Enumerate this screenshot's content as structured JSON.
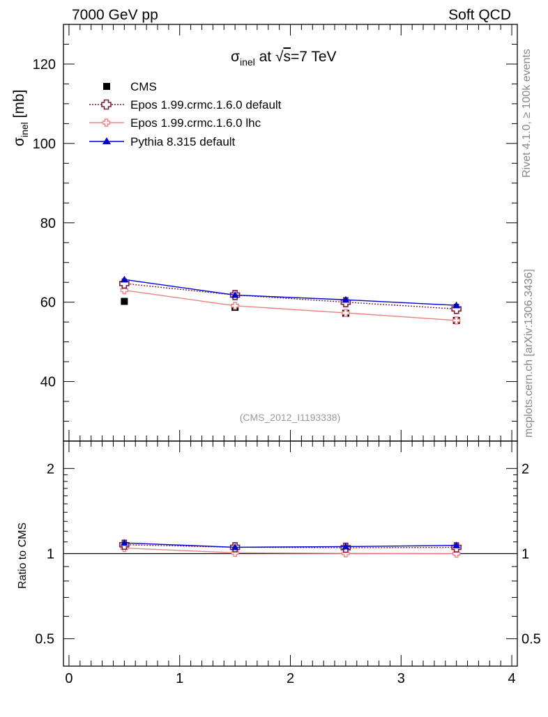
{
  "header": {
    "left": "7000 GeV pp",
    "right": "Soft QCD",
    "side_rivet": "Rivet 4.1.0, ≥ 100k events",
    "side_mcplots": "mcplots.cern.ch [arXiv:1306.3436]"
  },
  "colors": {
    "cms": "#000000",
    "epos_default": "#7b1c3a",
    "epos_lhc": "#f08080",
    "pythia": "#0000cc"
  },
  "chart_data": [
    {
      "type": "scatter",
      "panel": "main",
      "title": "σinel at √s=7 TeV",
      "title_parts": {
        "sym": "σ",
        "sub": "inel",
        "at": " at ",
        "sqrt": "√",
        "s": "s",
        "rest": "=7 TeV"
      },
      "ylabel": "σinel [mb]",
      "ylabel_parts": {
        "sym": "σ",
        "sub": "inel",
        "unit": " [mb]"
      },
      "watermark": "(CMS_2012_I1193338)",
      "xlim": [
        -0.05,
        4.05
      ],
      "ylim": [
        25,
        130
      ],
      "yticks": [
        40,
        60,
        80,
        100,
        120
      ],
      "xticks": [
        0,
        1,
        2,
        3,
        4
      ],
      "xtick_labels": [
        "0",
        "1",
        "2",
        "3",
        "4"
      ],
      "legend_position": "top-left",
      "x": [
        0.5,
        1.5,
        2.5,
        3.5
      ],
      "series": [
        {
          "name": "CMS",
          "values": [
            60.2,
            58.7,
            57.2,
            55.4
          ]
        },
        {
          "name": "Epos 1.99.crmc.1.6.0 default",
          "values": [
            64.7,
            61.8,
            60.0,
            58.3
          ]
        },
        {
          "name": "Epos 1.99.crmc.1.6.0 lhc",
          "values": [
            63.0,
            59.1,
            57.3,
            55.4
          ]
        },
        {
          "name": "Pythia 8.315 default",
          "values": [
            65.7,
            61.8,
            60.6,
            59.2
          ]
        }
      ]
    },
    {
      "type": "line",
      "panel": "ratio",
      "ylabel": "Ratio to CMS",
      "ylim": [
        0.4,
        2.5
      ],
      "yscale": "log",
      "yticks": [
        0.5,
        1,
        2
      ],
      "ytick_labels": [
        "0.5",
        "1",
        "2"
      ],
      "reference_line": 1,
      "x": [
        0.5,
        1.5,
        2.5,
        3.5
      ],
      "series": [
        {
          "name": "Epos 1.99.crmc.1.6.0 default",
          "values": [
            1.075,
            1.053,
            1.049,
            1.052
          ]
        },
        {
          "name": "Epos 1.99.crmc.1.6.0 lhc",
          "values": [
            1.046,
            1.007,
            1.002,
            1.0
          ]
        },
        {
          "name": "Pythia 8.315 default",
          "values": [
            1.091,
            1.053,
            1.059,
            1.069
          ]
        }
      ]
    }
  ]
}
